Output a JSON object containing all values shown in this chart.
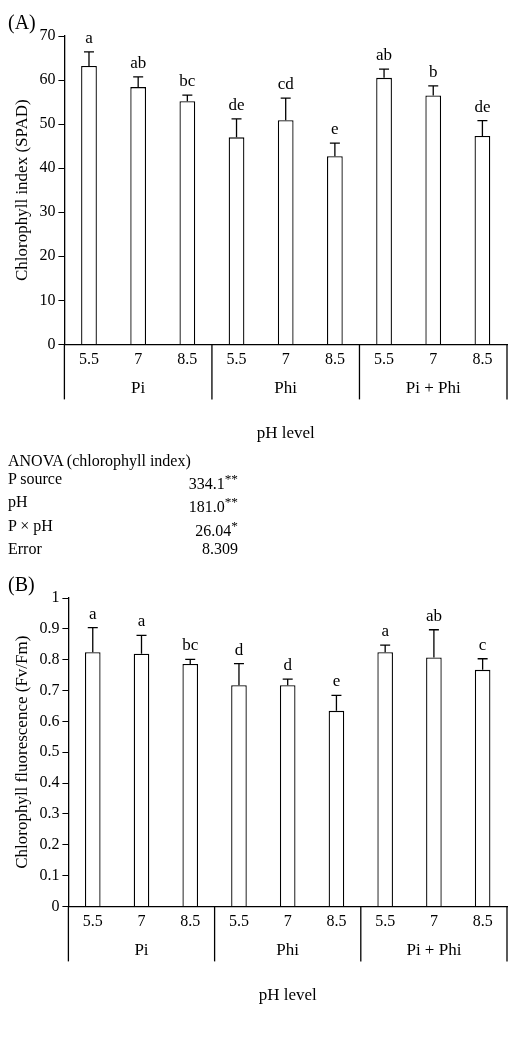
{
  "chart_data": [
    {
      "type": "bar",
      "title": "(A)",
      "xlabel": "pH level",
      "ylabel": "Chlorophyll index (SPAD)",
      "categories": [
        "5.5",
        "7",
        "8.5",
        "5.5",
        "7",
        "8.5",
        "5.5",
        "7",
        "8.5"
      ],
      "values": [
        63.2,
        58.4,
        55.2,
        47.0,
        50.9,
        42.7,
        60.5,
        56.5,
        47.3
      ],
      "errors": [
        3.2,
        2.3,
        1.4,
        4.2,
        5.0,
        3.0,
        2.0,
        2.2,
        3.5
      ],
      "value_labels": [
        "a",
        "ab",
        "bc",
        "de",
        "cd",
        "e",
        "ab",
        "b",
        "de"
      ],
      "color": "#ffffff",
      "annotations": [
        "Pi",
        "Phi",
        "Pi + Phi"
      ],
      "ylim": [
        0,
        70
      ],
      "yticks": [
        0,
        10,
        20,
        30,
        40,
        50,
        60,
        70
      ],
      "grid": false,
      "legend": false
    },
    {
      "type": "other",
      "title": "ANOVA (chlorophyll index)",
      "annotations": [
        "P source",
        "334.1$^{**}$",
        "pH",
        "181.0$^{**}$",
        "P × pH",
        "26.04$^{*}$",
        "Error",
        "8.309"
      ]
    },
    {
      "type": "bar",
      "title": "(B)",
      "xlabel": "pH level",
      "ylabel": "Chlorophyll fluorescence (Fv/Fm)",
      "categories": [
        "5.5",
        "7",
        "8.5",
        "5.5",
        "7",
        "8.5",
        "5.5",
        "7",
        "8.5"
      ],
      "values": [
        0.824,
        0.819,
        0.786,
        0.717,
        0.717,
        0.634,
        0.824,
        0.807,
        0.767
      ],
      "errors": [
        0.08,
        0.06,
        0.015,
        0.07,
        0.02,
        0.05,
        0.023,
        0.09,
        0.036
      ],
      "value_labels": [
        "a",
        "a",
        "bc",
        "d",
        "d",
        "e",
        "a",
        "ab",
        "c"
      ],
      "color": "#ffffff",
      "annotations": [
        "Pi",
        "Phi",
        "Pi + Phi"
      ],
      "ylim": [
        0,
        1
      ],
      "yticks": [
        0,
        0.1,
        0.2,
        0.3,
        0.4,
        0.5,
        0.6,
        0.7,
        0.8,
        0.9,
        1
      ],
      "grid": false,
      "legend": false
    }
  ]
}
